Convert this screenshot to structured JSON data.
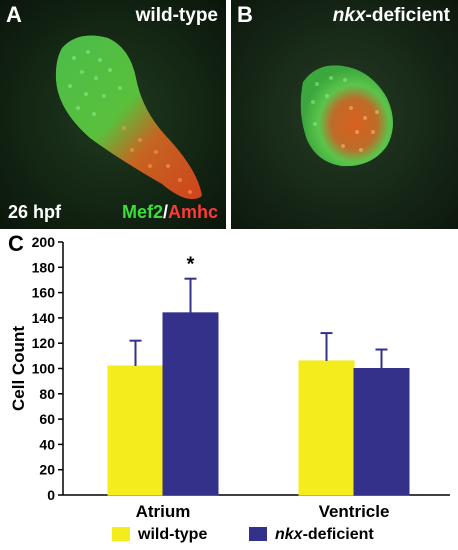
{
  "panel_a": {
    "letter": "A",
    "condition": "wild-type",
    "stage": "26 hpf",
    "stain_green": "Mef2",
    "stain_sep": "/",
    "stain_red": "Amhc"
  },
  "panel_b": {
    "letter": "B",
    "condition_italic": "nkx",
    "condition_rest": "-deficient"
  },
  "panel_c": {
    "letter": "C"
  },
  "colors": {
    "wild_type": "#f5ec1d",
    "nkx_deficient": "#33318a",
    "green_stain": "#3ddc3d",
    "red_stain": "#ff3838"
  },
  "chart_data": {
    "type": "bar",
    "categories": [
      "Atrium",
      "Ventricle"
    ],
    "ylabel": "Cell Count",
    "ylim": [
      0,
      200
    ],
    "yticks": [
      "0",
      "20",
      "40",
      "60",
      "80",
      "100",
      "120",
      "140",
      "160",
      "180",
      "200"
    ],
    "series": [
      {
        "name": "wild-type",
        "values": [
          102,
          106
        ],
        "errors": [
          20,
          22
        ]
      },
      {
        "name": "nkx-deficient",
        "values": [
          144,
          100
        ],
        "errors": [
          27,
          15
        ]
      }
    ],
    "annotations": [
      {
        "text": "*",
        "category": "Atrium",
        "series": "nkx-deficient"
      }
    ],
    "legend": {
      "position": "bottom",
      "items": [
        {
          "label": "wild-type"
        },
        {
          "label_italic": "nkx",
          "label_rest": "-deficient"
        }
      ]
    }
  }
}
